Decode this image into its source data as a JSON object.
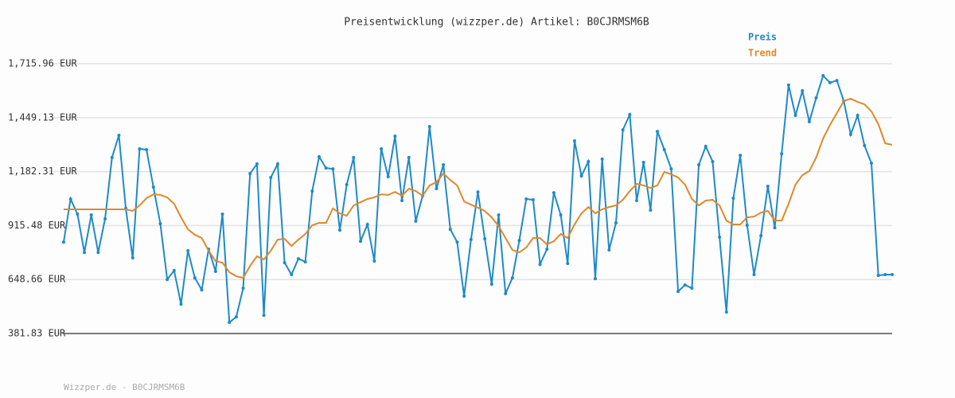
{
  "chart_data": {
    "type": "line",
    "title": "Preisentwicklung (wizzper.de) Artikel: B0CJRMSM6B",
    "footer": "Wizzper.de - B0CJRMSM6B",
    "legend": "top-right",
    "grid": true,
    "ylim": [
      381.83,
      1715.96
    ],
    "yticks": [
      {
        "value": 381.83,
        "label": "381.83 EUR"
      },
      {
        "value": 648.66,
        "label": "648.66 EUR"
      },
      {
        "value": 915.48,
        "label": "915.48 EUR"
      },
      {
        "value": 1182.31,
        "label": "1,182.31 EUR"
      },
      {
        "value": 1449.13,
        "label": "1,449.13 EUR"
      },
      {
        "value": 1715.96,
        "label": "1,715.96 EUR"
      }
    ],
    "series": [
      {
        "name": "Preis",
        "color": "#1f8ac8",
        "markers": true,
        "values": [
          834,
          1047,
          972,
          783,
          968,
          783,
          949,
          1252,
          1362,
          1000,
          756,
          1295,
          1291,
          1106,
          925,
          649,
          693,
          527,
          791,
          657,
          598,
          799,
          689,
          972,
          437,
          464,
          606,
          1173,
          1220,
          472,
          1153,
          1220,
          732,
          673,
          752,
          736,
          1086,
          1256,
          1200,
          1196,
          893,
          1118,
          1252,
          838,
          921,
          740,
          1295,
          1157,
          1358,
          1039,
          1252,
          937,
          1063,
          1405,
          1098,
          1216,
          897,
          834,
          567,
          846,
          1082,
          850,
          626,
          968,
          579,
          657,
          842,
          1047,
          1043,
          724,
          799,
          1078,
          968,
          728,
          1334,
          1161,
          1232,
          653,
          1244,
          795,
          929,
          1389,
          1464,
          1039,
          1228,
          992,
          1381,
          1291,
          1196,
          590,
          622,
          606,
          1216,
          1307,
          1232,
          858,
          488,
          1051,
          1263,
          917,
          673,
          866,
          1110,
          905,
          1271,
          1610,
          1460,
          1582,
          1429,
          1547,
          1657,
          1622,
          1633,
          1531,
          1366,
          1460,
          1311,
          1224,
          669,
          673,
          673
        ]
      },
      {
        "name": "Trend",
        "color": "#e0882a",
        "markers": false,
        "values": [
          996,
          996,
          996,
          996,
          996,
          996,
          996,
          996,
          996,
          996,
          988,
          1015,
          1051,
          1070,
          1067,
          1055,
          1023,
          956,
          897,
          870,
          854,
          791,
          740,
          732,
          685,
          665,
          657,
          716,
          764,
          748,
          791,
          846,
          850,
          815,
          846,
          874,
          917,
          929,
          929,
          1000,
          976,
          964,
          1015,
          1031,
          1047,
          1055,
          1070,
          1067,
          1082,
          1063,
          1098,
          1086,
          1063,
          1114,
          1130,
          1173,
          1141,
          1114,
          1035,
          1019,
          1004,
          988,
          956,
          913,
          854,
          795,
          783,
          807,
          854,
          854,
          823,
          838,
          874,
          854,
          921,
          976,
          1007,
          976,
          996,
          1007,
          1015,
          1043,
          1086,
          1122,
          1114,
          1102,
          1114,
          1181,
          1169,
          1153,
          1118,
          1047,
          1015,
          1039,
          1043,
          1015,
          940,
          921,
          921,
          956,
          960,
          980,
          988,
          940,
          940,
          1023,
          1118,
          1165,
          1185,
          1252,
          1346,
          1413,
          1472,
          1531,
          1543,
          1527,
          1515,
          1480,
          1417,
          1322,
          1315
        ]
      }
    ]
  }
}
